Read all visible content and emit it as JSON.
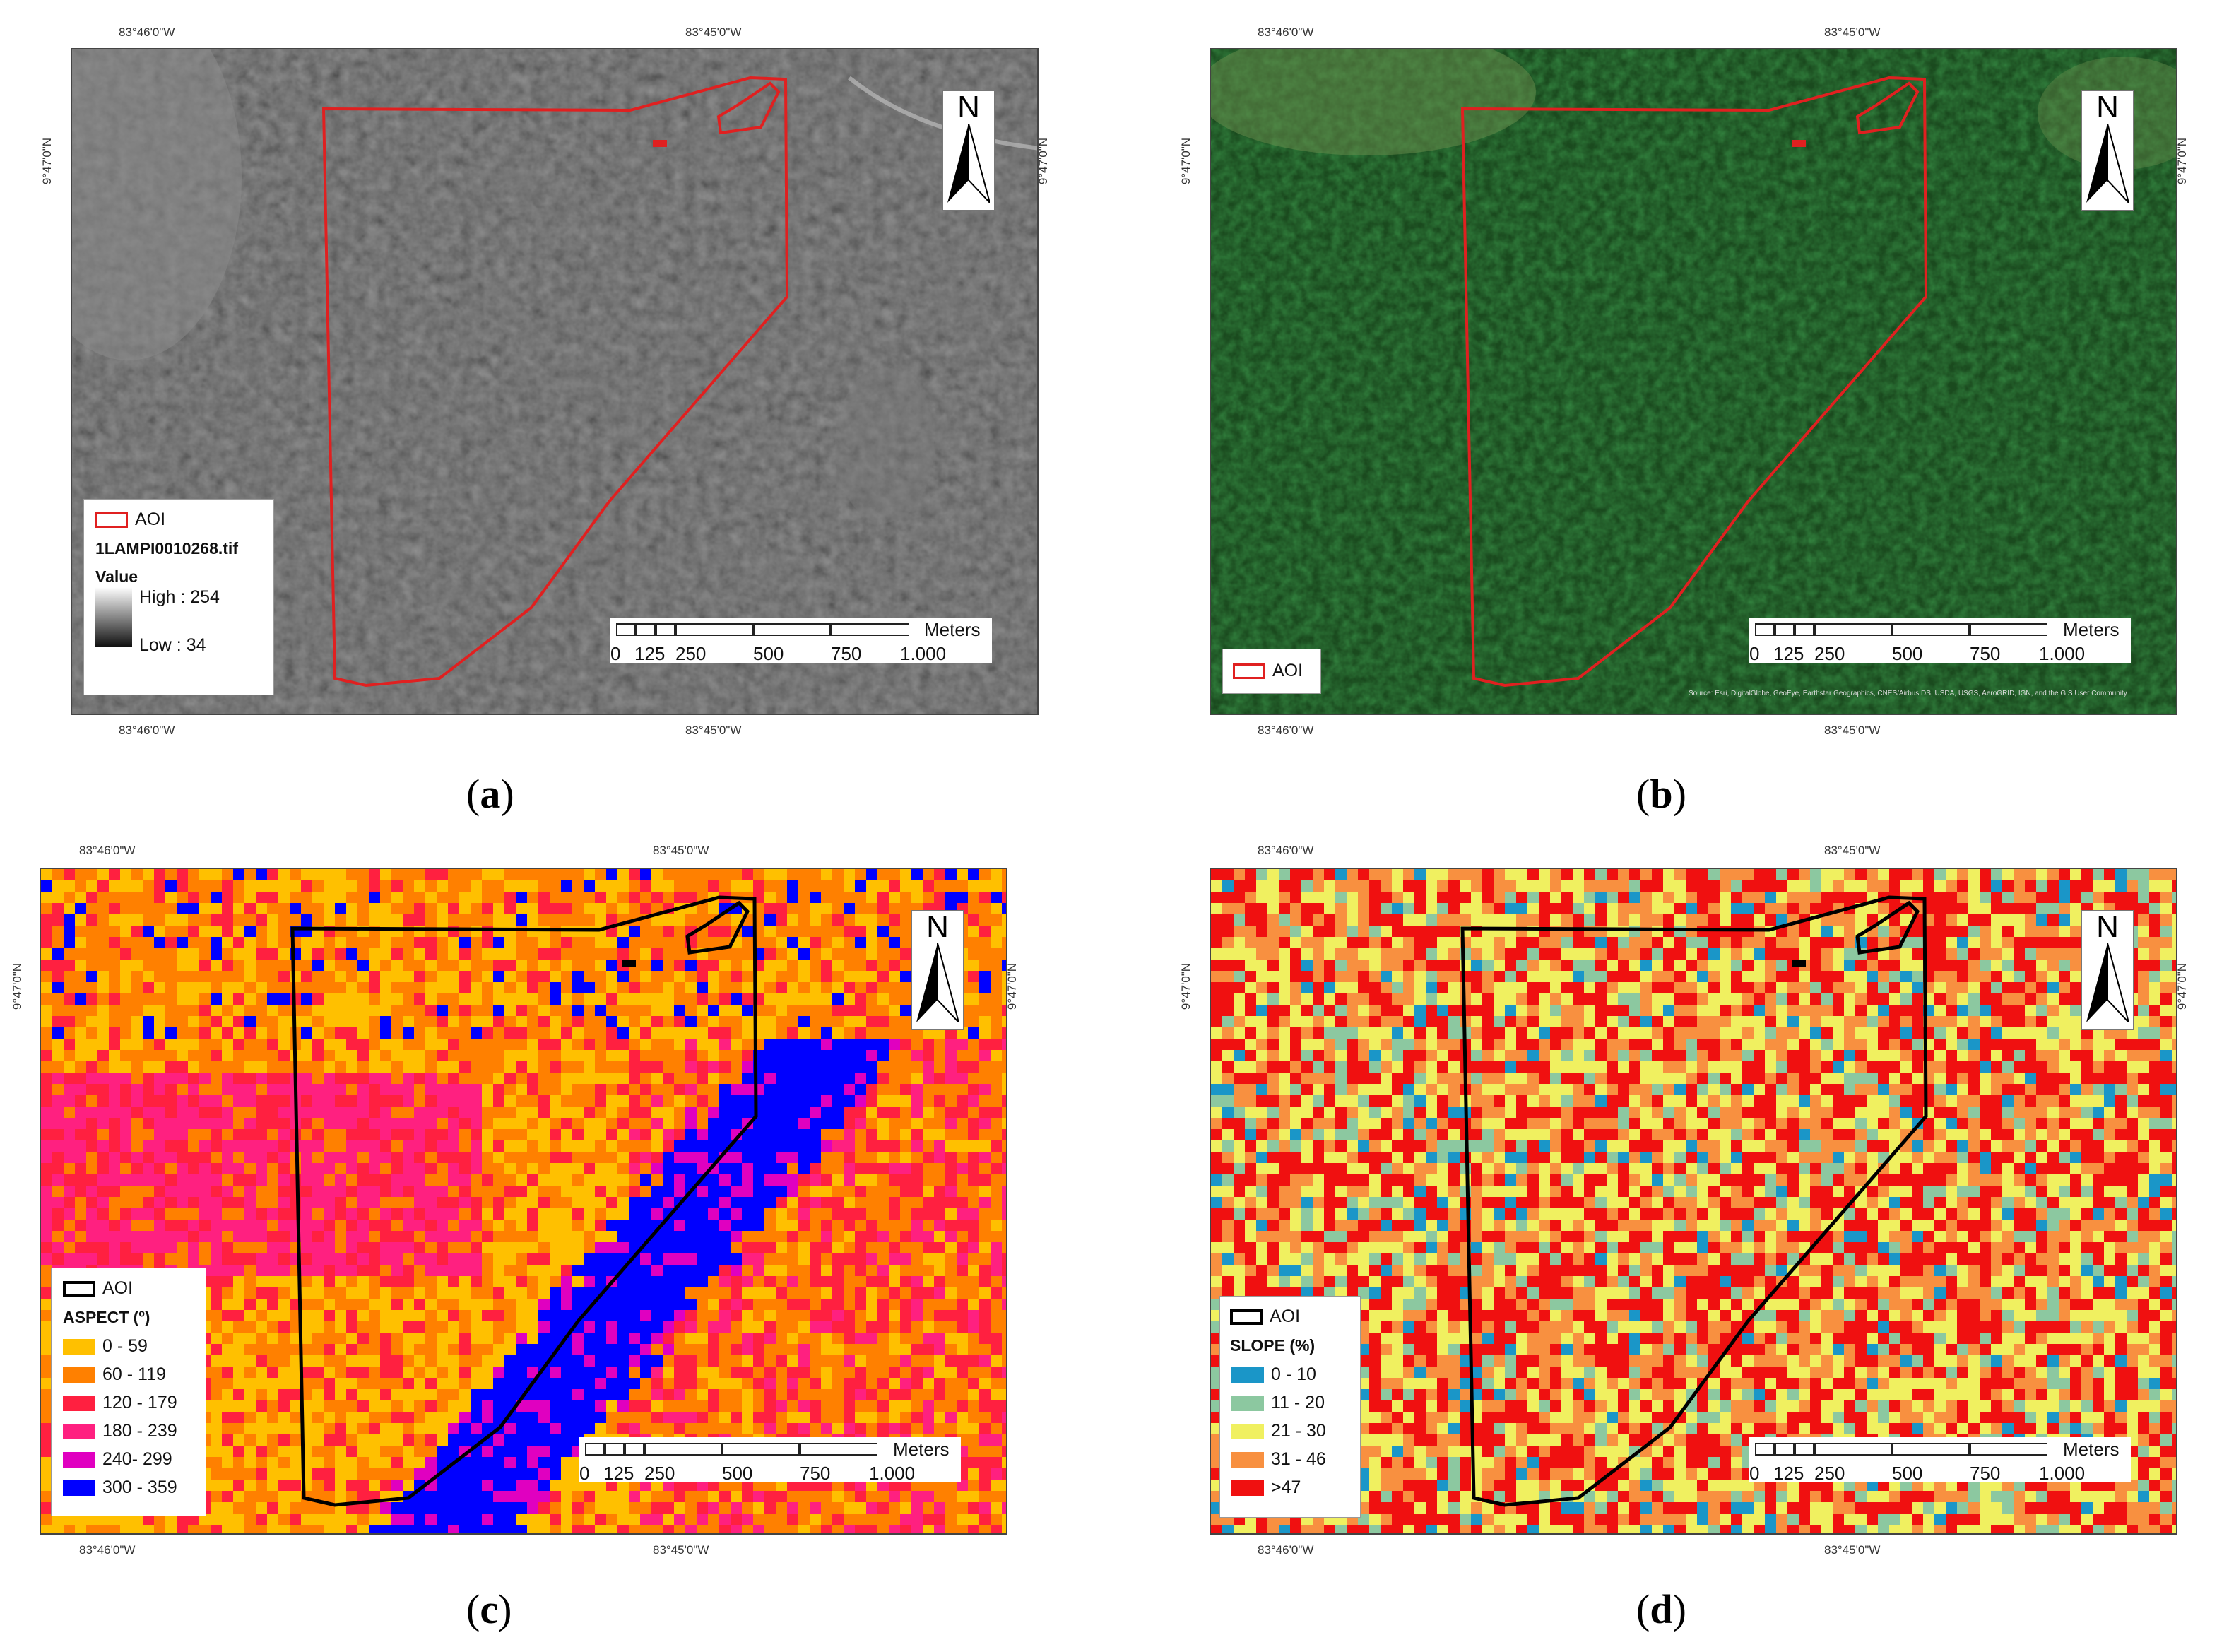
{
  "coords": {
    "lon_left": "83°46'0\"W",
    "lon_right": "83°45'0\"W",
    "lat": "9°47'0\"N"
  },
  "north_label": "N",
  "scalebar": {
    "ticks": [
      "0",
      "125",
      "250",
      "500",
      "750",
      "1.000"
    ],
    "unit": "Meters"
  },
  "panels": {
    "a": {
      "caption_label": "a",
      "legend": {
        "aoi_label": "AOI",
        "file_name": "1LAMPI0010268.tif",
        "value_label": "Value",
        "high_label": "High : 254",
        "low_label": "Low : 34"
      }
    },
    "b": {
      "caption_label": "b",
      "legend": {
        "aoi_label": "AOI"
      },
      "attribution": "Source: Esri, DigitalGlobe, GeoEye, Earthstar Geographics, CNES/Airbus DS, USDA, USGS, AeroGRID, IGN, and the GIS User Community"
    },
    "c": {
      "caption_label": "c",
      "legend": {
        "aoi_label": "AOI",
        "title": "ASPECT (º)",
        "classes": [
          {
            "label": "0 - 59",
            "color": "#FFC000"
          },
          {
            "label": "60 - 119",
            "color": "#FF8000"
          },
          {
            "label": "120 - 179",
            "color": "#FF2040"
          },
          {
            "label": "180 - 239",
            "color": "#FF2080"
          },
          {
            "label": "240- 299",
            "color": "#E000C0"
          },
          {
            "label": "300 - 359",
            "color": "#0000FF"
          }
        ]
      }
    },
    "d": {
      "caption_label": "d",
      "legend": {
        "aoi_label": "AOI",
        "title": "SLOPE (%)",
        "classes": [
          {
            "label": "0 - 10",
            "color": "#1A96C8"
          },
          {
            "label": "11 - 20",
            "color": "#8CC8A0"
          },
          {
            "label": "21 - 30",
            "color": "#F0F060"
          },
          {
            "label": "31 - 46",
            "color": "#F89040"
          },
          {
            "label": ">47",
            "color": "#F01010"
          }
        ]
      }
    }
  },
  "colors": {
    "aoi_red": "#E02020",
    "aoi_black": "#000000",
    "forest_green": "#1E4A22"
  }
}
